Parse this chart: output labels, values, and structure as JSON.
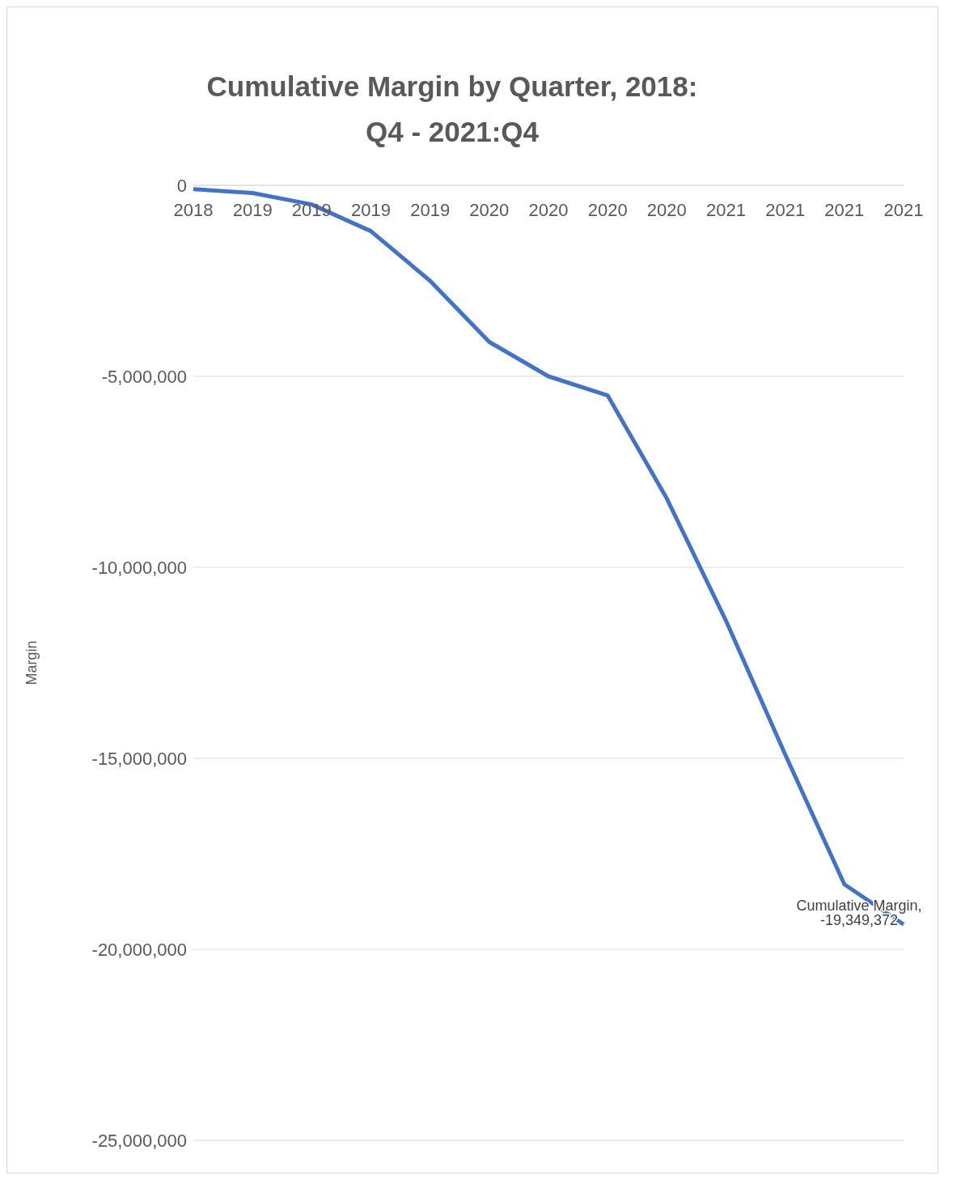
{
  "chart_data": {
    "type": "line",
    "title": "Cumulative Margin by Quarter, 2018: Q4 - 2021:Q4",
    "ylabel": "Margin",
    "categories": [
      "2018",
      "2019",
      "2019",
      "2019",
      "2019",
      "2020",
      "2020",
      "2020",
      "2020",
      "2021",
      "2021",
      "2021",
      "2021"
    ],
    "series": [
      {
        "color": "#4472c4",
        "values": [
          -100000,
          -200000,
          -500000,
          -1200000,
          -2500000,
          -4100000,
          -5000000,
          -5500000,
          -8200000,
          -11400000,
          -14900000,
          -18300000,
          -19349372
        ],
        "value_labels": [
          null,
          null,
          null,
          null,
          null,
          null,
          null,
          null,
          null,
          null,
          null,
          null,
          "Cumulative Margin, -19,349,372"
        ]
      }
    ],
    "ylim": [
      -25000000,
      0
    ],
    "yticks": [
      {
        "value": -25000000,
        "label": "-25,000,000"
      },
      {
        "value": -20000000,
        "label": "-20,000,000"
      },
      {
        "value": -15000000,
        "label": "-15,000,000"
      },
      {
        "value": -10000000,
        "label": "-10,000,000"
      },
      {
        "value": -5000000,
        "label": "-5,000,000"
      },
      0
    ],
    "grid": "y",
    "legend": false,
    "marker": "none",
    "line_style": "solid"
  }
}
